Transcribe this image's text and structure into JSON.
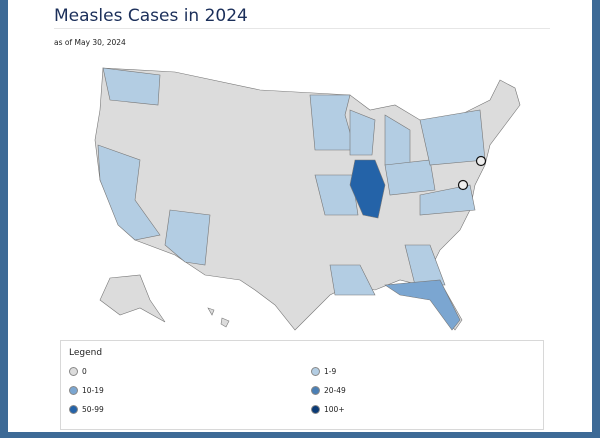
{
  "header": {
    "title": "Measles Cases in 2024",
    "subtitle": "as of May 30, 2024"
  },
  "legend": {
    "title": "Legend",
    "items": [
      {
        "label": "0",
        "color": "#dcdcdc"
      },
      {
        "label": "1-9",
        "color": "#b3cde3"
      },
      {
        "label": "10-19",
        "color": "#7ba6d1"
      },
      {
        "label": "20-49",
        "color": "#4a7fb5"
      },
      {
        "label": "50-99",
        "color": "#2463a8"
      },
      {
        "label": "100+",
        "color": "#0b3a75"
      }
    ]
  }
}
